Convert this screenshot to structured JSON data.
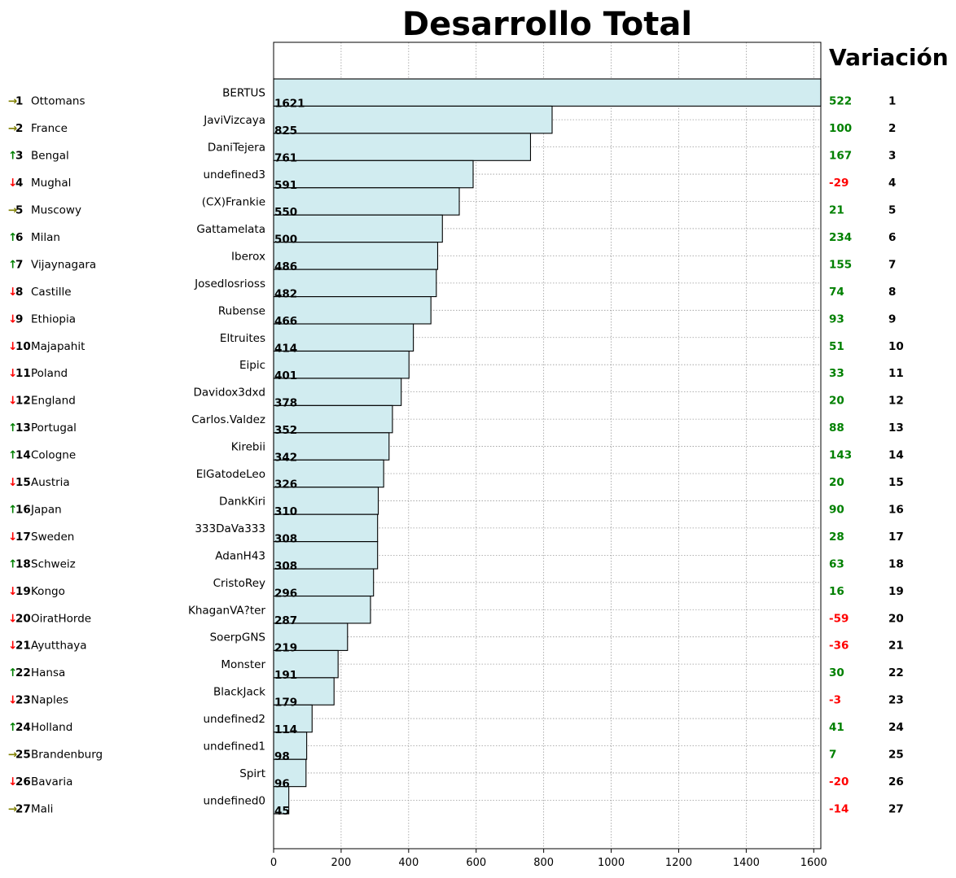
{
  "chart_data": {
    "type": "bar",
    "orientation": "horizontal",
    "title": "Desarrollo Total",
    "variation_header": "Variación",
    "xlim": [
      0,
      1621
    ],
    "xticks": [
      0,
      200,
      400,
      600,
      800,
      1000,
      1200,
      1400,
      1600
    ],
    "grid": true,
    "bar_color": "#d1ecf0",
    "bar_edge": "#000000",
    "up_color": "#008000",
    "down_color": "#ff0000",
    "neutral_color": "#808000",
    "categories": [
      "BERTUS",
      "JaviVizcaya",
      "DaniTejera",
      "undefined3",
      "(CX)Frankie",
      "Gattamelata",
      "Iberox",
      "Josedlosrioss",
      "Rubense",
      "Eltruites",
      "Eipic",
      "Davidox3dxd",
      "Carlos.Valdez",
      "Kirebii",
      "ElGatodeLeo",
      "DankKiri",
      "333DaVa333",
      "AdanH43",
      "CristoRey",
      "KhaganVA?ter",
      "SoerpGNS",
      "Monster",
      "BlackJack",
      "undefined2",
      "undefined1",
      "Spirt",
      "undefined0"
    ],
    "values": [
      1621,
      825,
      761,
      591,
      550,
      500,
      486,
      482,
      466,
      414,
      401,
      378,
      352,
      342,
      326,
      310,
      308,
      308,
      296,
      287,
      219,
      191,
      179,
      114,
      98,
      96,
      45
    ],
    "left_table": [
      {
        "arrow": "→",
        "trend": "neutral",
        "rank": "1",
        "country": "Ottomans"
      },
      {
        "arrow": "→",
        "trend": "neutral",
        "rank": "2",
        "country": "France"
      },
      {
        "arrow": "↑",
        "trend": "up",
        "rank": "3",
        "country": "Bengal"
      },
      {
        "arrow": "↓",
        "trend": "down",
        "rank": "4",
        "country": "Mughal"
      },
      {
        "arrow": "→",
        "trend": "neutral",
        "rank": "5",
        "country": "Muscowy"
      },
      {
        "arrow": "↑",
        "trend": "up",
        "rank": "6",
        "country": "Milan"
      },
      {
        "arrow": "↑",
        "trend": "up",
        "rank": "7",
        "country": "Vijaynagara"
      },
      {
        "arrow": "↓",
        "trend": "down",
        "rank": "8",
        "country": "Castille"
      },
      {
        "arrow": "↓",
        "trend": "down",
        "rank": "9",
        "country": "Ethiopia"
      },
      {
        "arrow": "↓",
        "trend": "down",
        "rank": "10",
        "country": "Majapahit"
      },
      {
        "arrow": "↓",
        "trend": "down",
        "rank": "11",
        "country": "Poland"
      },
      {
        "arrow": "↓",
        "trend": "down",
        "rank": "12",
        "country": "England"
      },
      {
        "arrow": "↑",
        "trend": "up",
        "rank": "13",
        "country": "Portugal"
      },
      {
        "arrow": "↑",
        "trend": "up",
        "rank": "14",
        "country": "Cologne"
      },
      {
        "arrow": "↓",
        "trend": "down",
        "rank": "15",
        "country": "Austria"
      },
      {
        "arrow": "↑",
        "trend": "up",
        "rank": "16",
        "country": "Japan"
      },
      {
        "arrow": "↓",
        "trend": "down",
        "rank": "17",
        "country": "Sweden"
      },
      {
        "arrow": "↑",
        "trend": "up",
        "rank": "18",
        "country": "Schweiz"
      },
      {
        "arrow": "↓",
        "trend": "down",
        "rank": "19",
        "country": "Kongo"
      },
      {
        "arrow": "↓",
        "trend": "down",
        "rank": "20",
        "country": "OiratHorde"
      },
      {
        "arrow": "↓",
        "trend": "down",
        "rank": "21",
        "country": "Ayutthaya"
      },
      {
        "arrow": "↑",
        "trend": "up",
        "rank": "22",
        "country": "Hansa"
      },
      {
        "arrow": "↓",
        "trend": "down",
        "rank": "23",
        "country": "Naples"
      },
      {
        "arrow": "↑",
        "trend": "up",
        "rank": "24",
        "country": "Holland"
      },
      {
        "arrow": "→",
        "trend": "neutral",
        "rank": "25",
        "country": "Brandenburg"
      },
      {
        "arrow": "↓",
        "trend": "down",
        "rank": "26",
        "country": "Bavaria"
      },
      {
        "arrow": "→",
        "trend": "neutral",
        "rank": "27",
        "country": "Mali"
      }
    ],
    "variations": [
      522,
      100,
      167,
      -29,
      21,
      234,
      155,
      74,
      93,
      51,
      33,
      20,
      88,
      143,
      20,
      90,
      28,
      63,
      16,
      -59,
      -36,
      30,
      -3,
      41,
      7,
      -20,
      -14
    ],
    "right_ranks": [
      "1",
      "2",
      "3",
      "4",
      "5",
      "6",
      "7",
      "8",
      "9",
      "10",
      "11",
      "12",
      "13",
      "14",
      "15",
      "16",
      "17",
      "18",
      "19",
      "20",
      "21",
      "22",
      "23",
      "24",
      "25",
      "26",
      "27"
    ]
  }
}
